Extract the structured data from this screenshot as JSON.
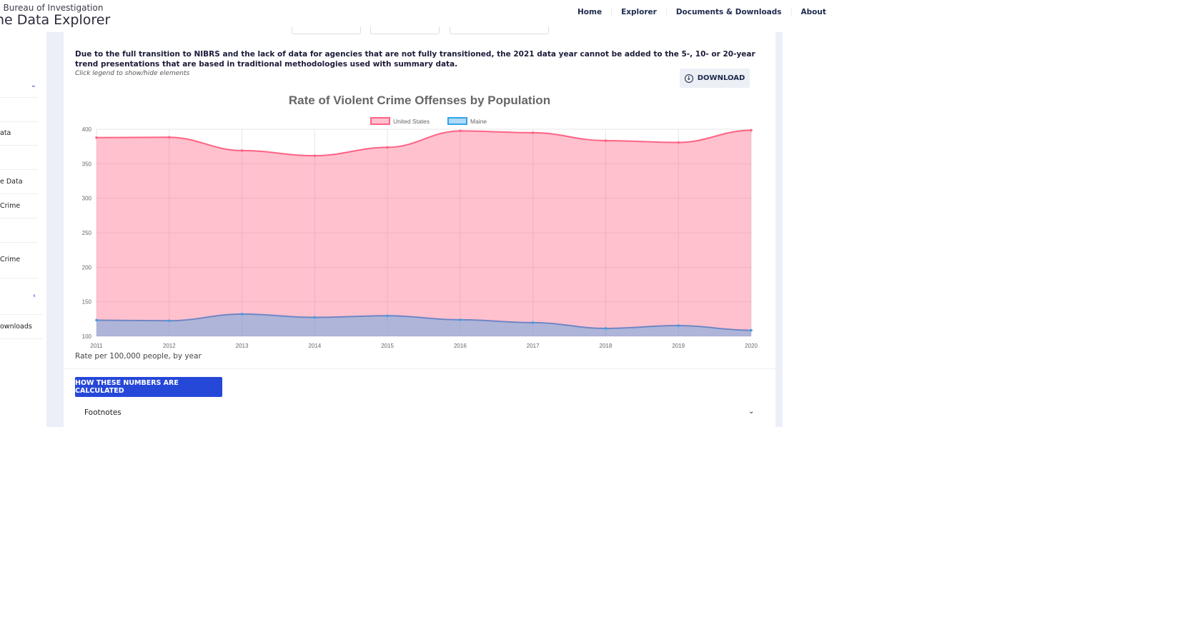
{
  "header": {
    "agency": "al Bureau of Investigation",
    "app_title": "he Data Explorer",
    "nav": [
      "Home",
      "Explorer",
      "Documents & Downloads",
      "About"
    ]
  },
  "sidebar": {
    "items": [
      "",
      "",
      "ata",
      "",
      "e Data",
      "Crime",
      "",
      "Crime",
      "",
      "ownloads"
    ]
  },
  "main": {
    "notice": "Due to the full transition to NIBRS and the lack of data for agencies that are not fully transitioned, the 2021 data year cannot be added to the 5-, 10- or 20-year trend presentations that are based in traditional methodologies used with summary data.",
    "hint": "Click legend to show/hide elements",
    "download_label": "DOWNLOAD",
    "caption": "Rate per 100,000 people, by year",
    "how_button": "HOW THESE NUMBERS ARE CALCULATED",
    "footnotes": "Footnotes"
  },
  "colors": {
    "us_line": "#ff6384",
    "us_fill": "rgba(255,99,132,0.4)",
    "maine_line": "#36a2eb",
    "maine_fill": "rgba(54,162,235,0.4)",
    "button": "#2648d8"
  },
  "chart_data": {
    "type": "area",
    "title": "Rate of Violent Crime Offenses by Population",
    "x": [
      2011,
      2012,
      2013,
      2014,
      2015,
      2016,
      2017,
      2018,
      2019,
      2020
    ],
    "series": [
      {
        "name": "United States",
        "values": [
          387.8,
          388.3,
          369.1,
          361.6,
          373.7,
          397.5,
          394.9,
          383.4,
          380.8,
          398.5
        ]
      },
      {
        "name": "Maine",
        "values": [
          123.3,
          122.5,
          132.2,
          127.4,
          129.7,
          123.9,
          119.8,
          111.4,
          115.5,
          108.6
        ]
      }
    ],
    "yticks": [
      100,
      150,
      200,
      250,
      300,
      350,
      400
    ],
    "ylim": [
      100,
      400
    ],
    "grid": true,
    "legend": "top"
  }
}
